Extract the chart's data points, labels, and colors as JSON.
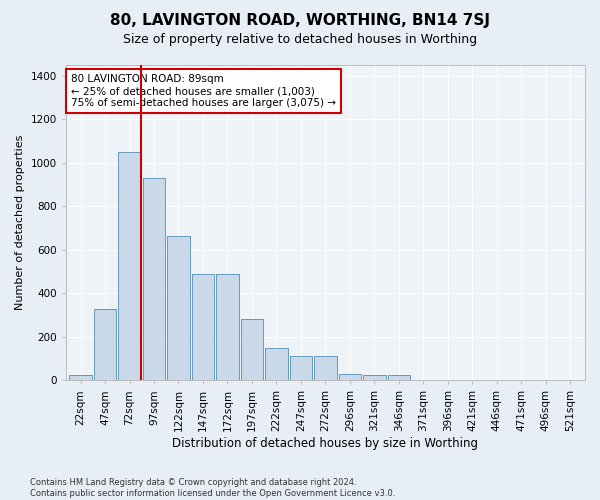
{
  "title": "80, LAVINGTON ROAD, WORTHING, BN14 7SJ",
  "subtitle": "Size of property relative to detached houses in Worthing",
  "xlabel": "Distribution of detached houses by size in Worthing",
  "ylabel": "Number of detached properties",
  "footer_line1": "Contains HM Land Registry data © Crown copyright and database right 2024.",
  "footer_line2": "Contains public sector information licensed under the Open Government Licence v3.0.",
  "categories": [
    "22sqm",
    "47sqm",
    "72sqm",
    "97sqm",
    "122sqm",
    "147sqm",
    "172sqm",
    "197sqm",
    "222sqm",
    "247sqm",
    "272sqm",
    "296sqm",
    "321sqm",
    "346sqm",
    "371sqm",
    "396sqm",
    "421sqm",
    "446sqm",
    "471sqm",
    "496sqm",
    "521sqm"
  ],
  "values": [
    25,
    330,
    1050,
    930,
    665,
    490,
    490,
    280,
    150,
    110,
    110,
    30,
    25,
    25,
    0,
    0,
    0,
    0,
    0,
    0,
    0
  ],
  "bar_color": "#c9d9ea",
  "bar_edge_color": "#6699bb",
  "vline_color": "#cc0000",
  "vline_pos": 2.45,
  "annotation_text": "80 LAVINGTON ROAD: 89sqm\n← 25% of detached houses are smaller (1,003)\n75% of semi-detached houses are larger (3,075) →",
  "annotation_box_facecolor": "#ffffff",
  "annotation_box_edgecolor": "#cc0000",
  "ylim": [
    0,
    1450
  ],
  "yticks": [
    0,
    200,
    400,
    600,
    800,
    1000,
    1200,
    1400
  ],
  "bg_color": "#e8eef5",
  "plot_bg_color": "#eef3f8",
  "grid_color": "#ffffff",
  "title_fontsize": 11,
  "subtitle_fontsize": 9,
  "tick_fontsize": 7.5,
  "ylabel_fontsize": 8,
  "xlabel_fontsize": 8.5,
  "annotation_fontsize": 7.5,
  "footer_fontsize": 6
}
